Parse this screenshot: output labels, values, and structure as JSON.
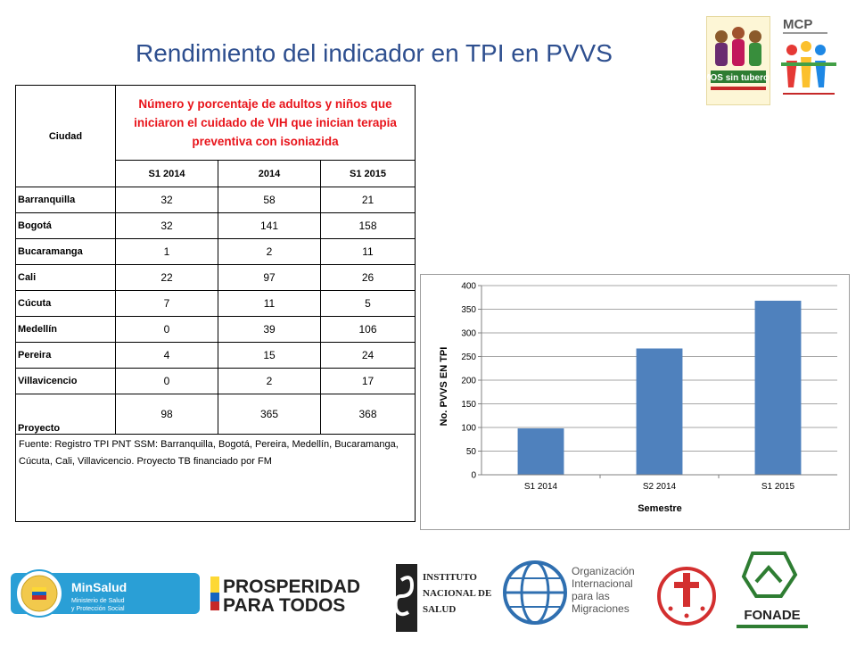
{
  "title": "Rendimiento del indicador en TPI en PVVS",
  "logos": {
    "vivamos": "VIVAMOS sin tuberculosis",
    "mcp": "MCP",
    "minsalud": "MinSalud",
    "minsalud_sub1": "Ministerio de Salud",
    "minsalud_sub2": "y Protección Social",
    "prosperidad_1": "PROSPERIDAD",
    "prosperidad_2": "PARA TODOS",
    "ins_1": "INSTITUTO",
    "ins_2": "NACIONAL DE",
    "ins_3": "SALUD",
    "oim_1": "Organización",
    "oim_2": "Internacional",
    "oim_3": "para las",
    "oim_4": "Migraciones",
    "fonade": "FONADE"
  },
  "table": {
    "header_city": "Ciudad",
    "header_main": "Número y porcentaje de adultos y niños que iniciaron el cuidado de VIH que inician terapia preventiva con isoniazida",
    "columns": [
      "S1 2014",
      "2014",
      "S1 2015"
    ],
    "rows": [
      {
        "city": "Barranquilla",
        "values": [
          "32",
          "58",
          "21"
        ]
      },
      {
        "city": "Bogotá",
        "values": [
          "32",
          "141",
          "158"
        ]
      },
      {
        "city": "Bucaramanga",
        "values": [
          "1",
          "2",
          "11"
        ]
      },
      {
        "city": "Cali",
        "values": [
          "22",
          "97",
          "26"
        ]
      },
      {
        "city": "Cúcuta",
        "values": [
          "7",
          "11",
          "5"
        ]
      },
      {
        "city": "Medellín",
        "values": [
          "0",
          "39",
          "106"
        ]
      },
      {
        "city": "Pereira",
        "values": [
          "4",
          "15",
          "24"
        ]
      },
      {
        "city": "Villavicencio",
        "values": [
          "0",
          "2",
          "17"
        ]
      },
      {
        "city": "Proyecto",
        "values": [
          "98",
          "365",
          "368"
        ]
      }
    ],
    "source": "Fuente: Registro TPI PNT SSM: Barranquilla, Bogotá, Pereira, Medellín, Bucaramanga, Cúcuta, Cali, Villavicencio. Proyecto TB financiado por FM"
  },
  "colors": {
    "title": "#2e4f8f",
    "bar": "#4f81bd",
    "header_text": "#e8141b"
  },
  "chart_data": {
    "type": "bar",
    "categories": [
      "S1 2014",
      "S2 2014",
      "S1 2015"
    ],
    "values": [
      98,
      267,
      368
    ],
    "title": "",
    "xlabel": "Semestre",
    "ylabel": "No. PVVS EN TPI",
    "ylim": [
      0,
      400
    ],
    "yticks": [
      0,
      50,
      100,
      150,
      200,
      250,
      300,
      350,
      400
    ],
    "grid": true,
    "legend": "none"
  }
}
